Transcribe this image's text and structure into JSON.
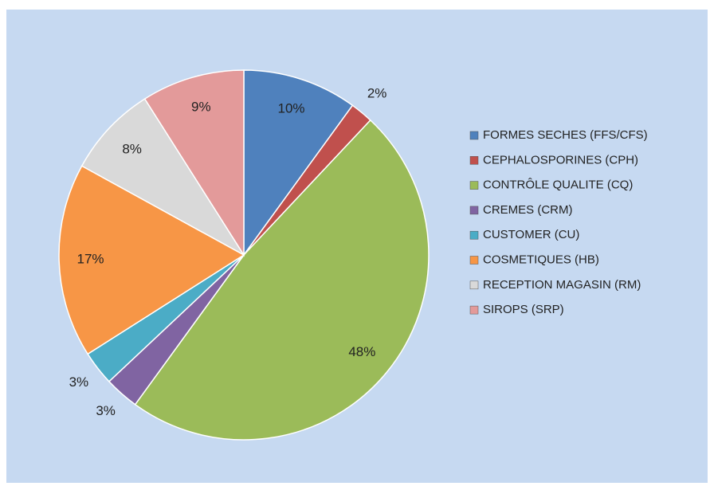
{
  "chart_data": {
    "type": "pie",
    "categories": [
      "FORMES SECHES (FFS/CFS)",
      "CEPHALOSPORINES (CPH)",
      "CONTRÔLE QUALITE (CQ)",
      "CREMES (CRM)",
      "CUSTOMER (CU)",
      "COSMETIQUES (HB)",
      "RECEPTION MAGASIN (RM)",
      "SIROPS (SRP)"
    ],
    "values": [
      10,
      2,
      48,
      3,
      3,
      17,
      8,
      9
    ],
    "value_labels": [
      "10%",
      "2%",
      "48%",
      "3%",
      "3%",
      "17%",
      "8%",
      "9%"
    ],
    "colors": [
      "#4f81bd",
      "#c0504d",
      "#9bbb59",
      "#8064a2",
      "#4bacc6",
      "#f79646",
      "#d9d9d9",
      "#e39a9a"
    ],
    "legend": "right"
  }
}
